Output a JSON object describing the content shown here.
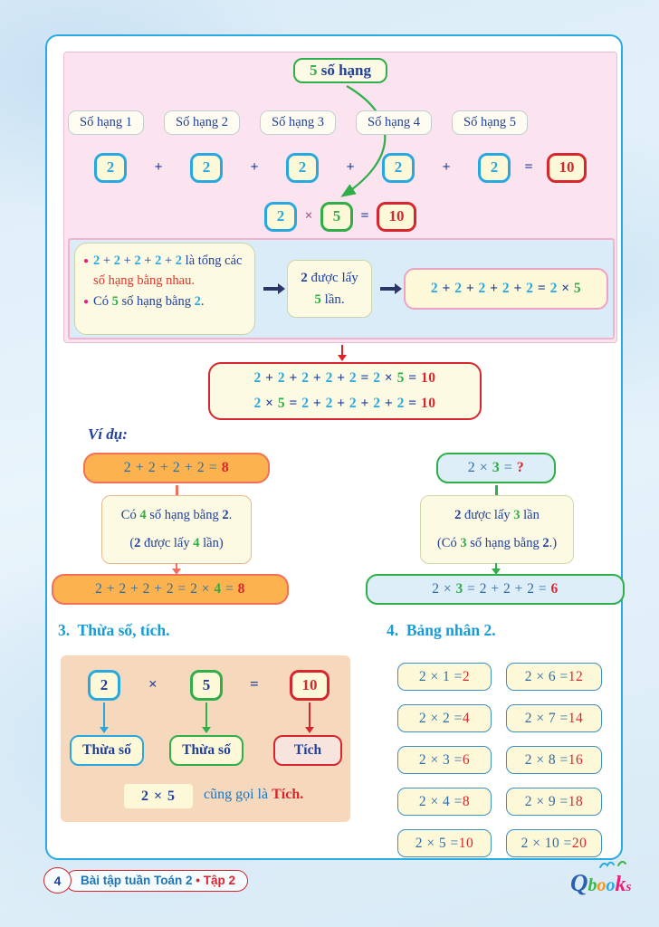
{
  "top": {
    "label5": {
      "num": "5",
      "text": " số hạng"
    },
    "addend_labels": [
      "Số hạng 1",
      "Số hạng 2",
      "Số hạng 3",
      "Số hạng 4",
      "Số hạng 5"
    ],
    "addition": {
      "terms": [
        "2",
        "2",
        "2",
        "2",
        "2"
      ],
      "plus": "+",
      "equals": "=",
      "result": "10"
    },
    "multiplication": {
      "a": "2",
      "times": "×",
      "b": "5",
      "equals": "=",
      "result": "10"
    }
  },
  "explain": {
    "bullet1_tokens": [
      {
        "t": "2",
        "c": "cyan-b"
      },
      {
        "t": " + ",
        "c": "navy"
      },
      {
        "t": "2",
        "c": "cyan-b"
      },
      {
        "t": " + ",
        "c": "navy"
      },
      {
        "t": "2",
        "c": "cyan-b"
      },
      {
        "t": " + ",
        "c": "navy"
      },
      {
        "t": "2",
        "c": "cyan-b"
      },
      {
        "t": " + ",
        "c": "navy"
      },
      {
        "t": "2",
        "c": "cyan-b"
      },
      {
        "t": " là tổng các ",
        "c": "navy"
      },
      {
        "t": "số hạng bằng nhau.",
        "c": "red"
      }
    ],
    "bullet2_tokens": [
      {
        "t": "Có ",
        "c": "navy"
      },
      {
        "t": "5",
        "c": "green-b"
      },
      {
        "t": " số hạng bằng ",
        "c": "navy"
      },
      {
        "t": "2",
        "c": "cyan-b"
      },
      {
        "t": ".",
        "c": "navy"
      }
    ],
    "mid_line1_tokens": [
      {
        "t": "2",
        "c": "navy-b"
      },
      {
        "t": " được lấy",
        "c": "navy"
      }
    ],
    "mid_line2_tokens": [
      {
        "t": "5",
        "c": "green-b"
      },
      {
        "t": " lần.",
        "c": "navy"
      }
    ],
    "eq_tokens": [
      {
        "t": "2",
        "c": "cyan-b"
      },
      {
        "t": " + ",
        "c": "navy-b"
      },
      {
        "t": "2",
        "c": "cyan-b"
      },
      {
        "t": " + ",
        "c": "navy-b"
      },
      {
        "t": "2",
        "c": "cyan-b"
      },
      {
        "t": " + ",
        "c": "navy-b"
      },
      {
        "t": "2",
        "c": "cyan-b"
      },
      {
        "t": " + ",
        "c": "navy-b"
      },
      {
        "t": "2",
        "c": "cyan-b"
      },
      {
        "t": " = ",
        "c": "navy-b"
      },
      {
        "t": "2",
        "c": "cyan-b"
      },
      {
        "t": " × ",
        "c": "navy-b"
      },
      {
        "t": "5",
        "c": "green-b"
      }
    ]
  },
  "summary": {
    "line1_tokens": [
      {
        "t": "2",
        "c": "cyan-b"
      },
      {
        "t": " + ",
        "c": "navy-b"
      },
      {
        "t": "2",
        "c": "cyan-b"
      },
      {
        "t": " + ",
        "c": "navy-b"
      },
      {
        "t": "2",
        "c": "cyan-b"
      },
      {
        "t": " + ",
        "c": "navy-b"
      },
      {
        "t": "2",
        "c": "cyan-b"
      },
      {
        "t": " + ",
        "c": "navy-b"
      },
      {
        "t": "2",
        "c": "cyan-b"
      },
      {
        "t": " = ",
        "c": "navy-b"
      },
      {
        "t": "2",
        "c": "cyan-b"
      },
      {
        "t": " × ",
        "c": "navy-b"
      },
      {
        "t": "5",
        "c": "green-b"
      },
      {
        "t": " = ",
        "c": "navy-b"
      },
      {
        "t": "10",
        "c": "red-b"
      }
    ],
    "line2_tokens": [
      {
        "t": "2",
        "c": "cyan-b"
      },
      {
        "t": " × ",
        "c": "navy-b"
      },
      {
        "t": "5",
        "c": "green-b"
      },
      {
        "t": " = ",
        "c": "navy-b"
      },
      {
        "t": "2",
        "c": "cyan-b"
      },
      {
        "t": " + ",
        "c": "navy-b"
      },
      {
        "t": "2",
        "c": "cyan-b"
      },
      {
        "t": " + ",
        "c": "navy-b"
      },
      {
        "t": "2",
        "c": "cyan-b"
      },
      {
        "t": " + ",
        "c": "navy-b"
      },
      {
        "t": "2",
        "c": "cyan-b"
      },
      {
        "t": " + ",
        "c": "navy-b"
      },
      {
        "t": "2",
        "c": "cyan-b"
      },
      {
        "t": " = ",
        "c": "navy-b"
      },
      {
        "t": "10",
        "c": "red-b"
      }
    ]
  },
  "examples": {
    "heading": "Ví dụ:",
    "left": {
      "top_tokens": [
        {
          "t": "2 + 2 + 2 + 2 = ",
          "c": "steel"
        },
        {
          "t": "8",
          "c": "red-b"
        }
      ],
      "note1_tokens": [
        {
          "t": "Có ",
          "c": "navy"
        },
        {
          "t": "4",
          "c": "green-b"
        },
        {
          "t": " số hạng bằng ",
          "c": "navy"
        },
        {
          "t": "2",
          "c": "navy-b"
        },
        {
          "t": ".",
          "c": "navy"
        }
      ],
      "note2_tokens": [
        {
          "t": "(",
          "c": "navy"
        },
        {
          "t": "2",
          "c": "navy-b"
        },
        {
          "t": " được lấy ",
          "c": "navy"
        },
        {
          "t": "4",
          "c": "green-b"
        },
        {
          "t": " lần)",
          "c": "navy"
        }
      ],
      "bottom_tokens": [
        {
          "t": "2 + 2 + 2 + 2 = 2 × ",
          "c": "steel"
        },
        {
          "t": "4",
          "c": "green-b"
        },
        {
          "t": " = ",
          "c": "steel"
        },
        {
          "t": "8",
          "c": "red-b"
        }
      ]
    },
    "right": {
      "top_tokens": [
        {
          "t": "2 × ",
          "c": "steel"
        },
        {
          "t": "3",
          "c": "green-b"
        },
        {
          "t": " = ",
          "c": "steel"
        },
        {
          "t": "?",
          "c": "red-b"
        }
      ],
      "note1_tokens": [
        {
          "t": "2",
          "c": "navy-b"
        },
        {
          "t": " được lấy ",
          "c": "navy"
        },
        {
          "t": "3",
          "c": "green-b"
        },
        {
          "t": " lần",
          "c": "navy"
        }
      ],
      "note2_tokens": [
        {
          "t": "(Có ",
          "c": "navy"
        },
        {
          "t": "3",
          "c": "green-b"
        },
        {
          "t": " số hạng bằng ",
          "c": "navy"
        },
        {
          "t": "2",
          "c": "navy-b"
        },
        {
          "t": ".)",
          "c": "navy"
        }
      ],
      "bottom_tokens": [
        {
          "t": "2 × ",
          "c": "steel"
        },
        {
          "t": "3",
          "c": "green-b"
        },
        {
          "t": " = 2 + 2 + 2 = ",
          "c": "steel"
        },
        {
          "t": "6",
          "c": "red-b"
        }
      ]
    }
  },
  "section3": {
    "heading": "3.  Thừa số, tích.",
    "a": "2",
    "times": "×",
    "b": "5",
    "equals": "=",
    "result": "10",
    "label_a": "Thừa số",
    "label_b": "Thừa số",
    "label_c": "Tích",
    "chip_tokens": [
      {
        "t": "2 × 5",
        "c": "navy-b"
      }
    ],
    "caption_tokens": [
      {
        "t": "cũng gọi là ",
        "c": "blue"
      },
      {
        "t": "Tích",
        "c": "red-b"
      },
      {
        "t": ".",
        "c": "red-b"
      }
    ]
  },
  "section4": {
    "heading": "4.  Bảng nhân 2.",
    "left": [
      {
        "eq": "2 × 1 = ",
        "res": "2"
      },
      {
        "eq": "2 × 2 = ",
        "res": "4"
      },
      {
        "eq": "2 × 3 = ",
        "res": "6"
      },
      {
        "eq": "2 × 4 = ",
        "res": "8"
      },
      {
        "eq": "2 × 5 = ",
        "res": "10"
      }
    ],
    "right": [
      {
        "eq": "2 × 6 = ",
        "res": "12"
      },
      {
        "eq": "2 × 7 = ",
        "res": "14"
      },
      {
        "eq": "2 × 8 = ",
        "res": "16"
      },
      {
        "eq": "2 × 9 = ",
        "res": "18"
      },
      {
        "eq": "2 × 10 = ",
        "res": "20"
      }
    ]
  },
  "footer": {
    "page_number": "4",
    "book_tokens": [
      {
        "t": "Bài tập tuần Toán 2 ",
        "c": "blue-b"
      },
      {
        "t": "• ",
        "c": "red-b"
      },
      {
        "t": "Tập 2",
        "c": "red-b"
      }
    ],
    "logo_letters": {
      "q": "Q",
      "b": "b",
      "o1": "o",
      "o2": "o",
      "k": "k",
      "s": "s"
    }
  }
}
